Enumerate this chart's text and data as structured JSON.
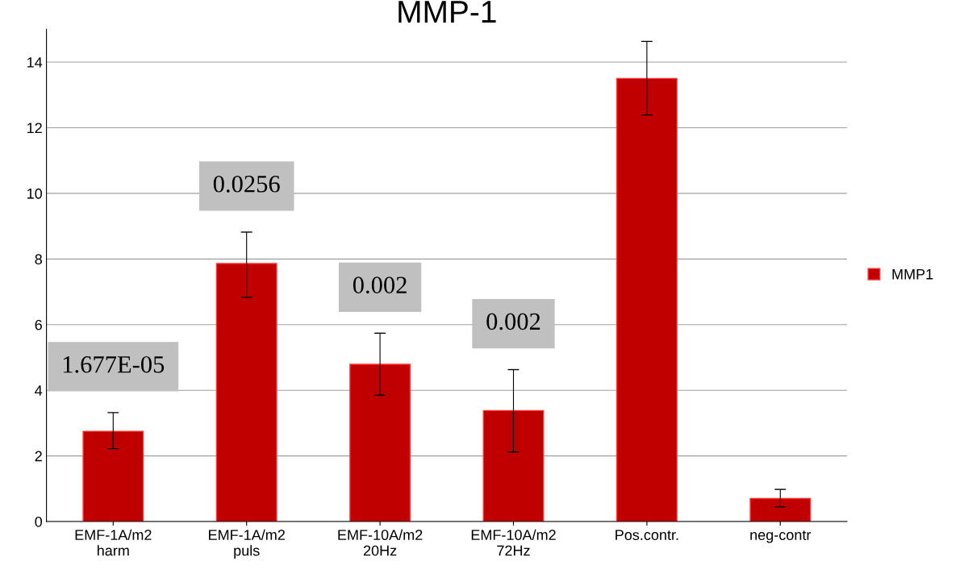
{
  "chart_data": {
    "type": "bar",
    "title": "MMP-1",
    "categories": [
      "EMF-1A/m2\nharm",
      "EMF-1A/m2\npuls",
      "EMF-10A/m2\n20Hz",
      "EMF-10A/m2\n72Hz",
      "Pos.contr.",
      "neg-contr"
    ],
    "series": [
      {
        "name": "MMP1",
        "color": "#c00000",
        "values": [
          2.75,
          7.86,
          4.79,
          3.38,
          13.5,
          0.7
        ],
        "errors": [
          [
            2.22,
            3.32
          ],
          [
            6.83,
            8.82
          ],
          [
            3.85,
            5.74
          ],
          [
            2.12,
            4.63
          ],
          [
            12.39,
            14.63
          ],
          [
            0.45,
            0.98
          ]
        ]
      }
    ],
    "ylim": [
      0,
      15
    ],
    "yticks": [
      0,
      2,
      4,
      6,
      8,
      10,
      12,
      14
    ],
    "grid": "y",
    "legend": "right",
    "annotations": [
      "1.677E-05",
      "0.0256",
      "0.002",
      "0.002"
    ]
  }
}
